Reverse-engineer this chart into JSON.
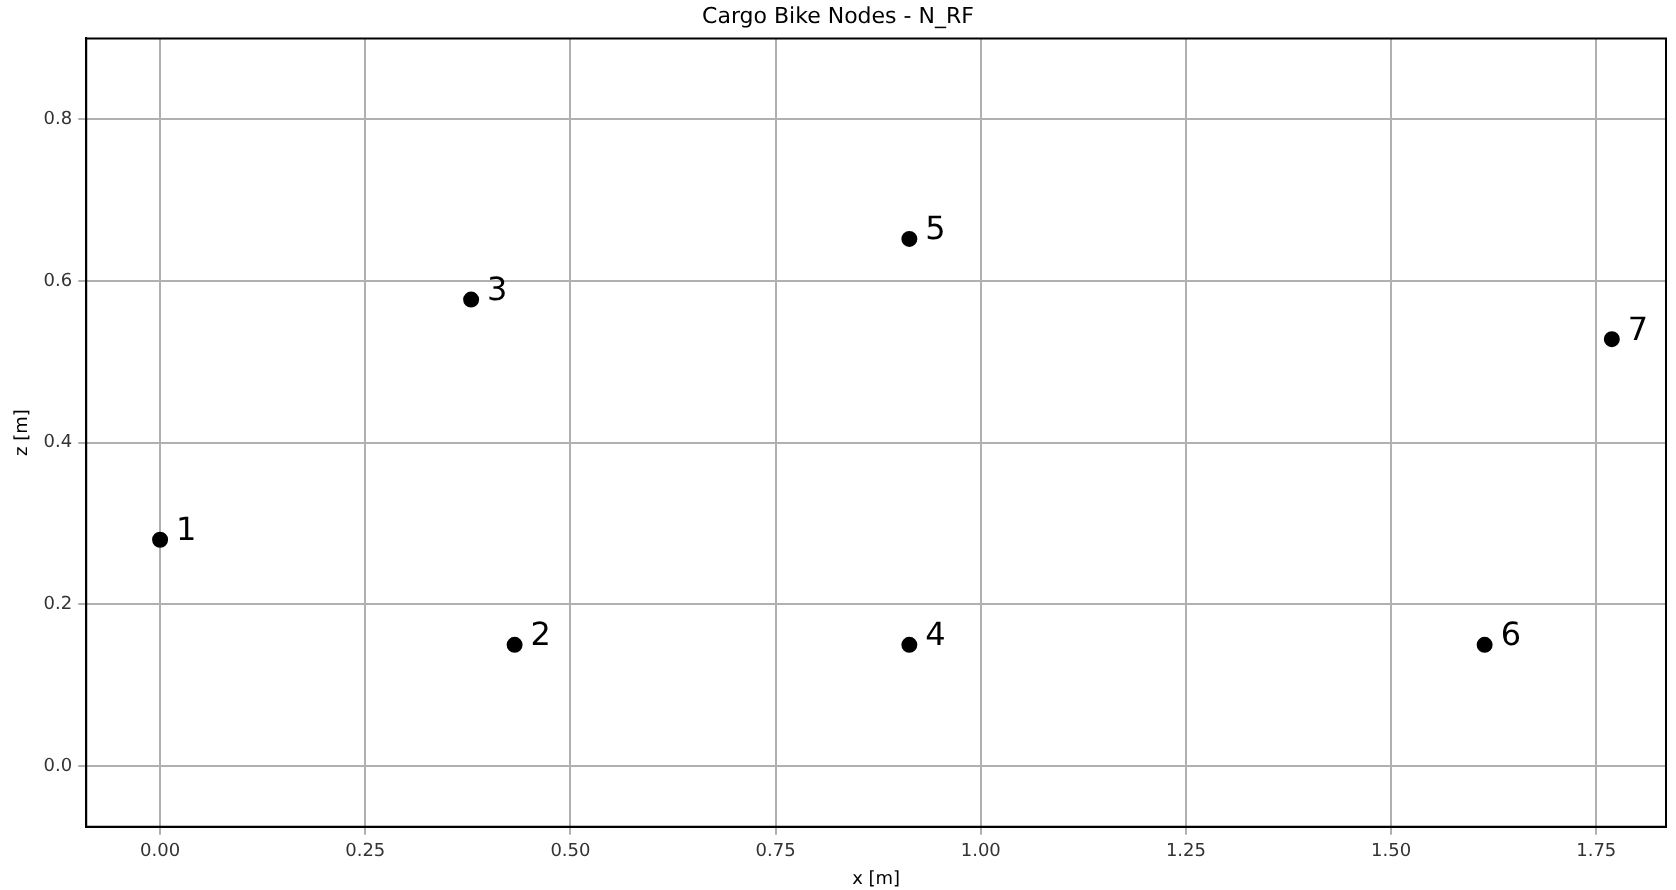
{
  "chart_data": {
    "type": "scatter",
    "title": "Cargo Bike Nodes - N_RF",
    "xlabel": "x [m]",
    "ylabel": "z [m]",
    "x": [
      0,
      0.432,
      0.379,
      0.913,
      0.913,
      1.614,
      1.769
    ],
    "series": [
      {
        "color": "#000000",
        "values": [
          0.28,
          0.15,
          0.577,
          0.15,
          0.652,
          0.15,
          0.528
        ]
      }
    ],
    "xlim": [
      -0.09,
      1.835
    ],
    "ylim": [
      -0.075,
      0.9
    ],
    "xticks": [
      {
        "value": 0,
        "label": "0.00"
      },
      {
        "value": 0.25,
        "label": "0.25"
      },
      {
        "value": 0.5,
        "label": "0.50"
      },
      {
        "value": 0.75,
        "label": "0.75"
      },
      {
        "value": 1,
        "label": "1.00"
      },
      {
        "value": 1.25,
        "label": "1.25"
      },
      {
        "value": 1.5,
        "label": "1.50"
      },
      {
        "value": 1.75,
        "label": "1.75"
      }
    ],
    "yticks": [
      {
        "value": 0,
        "label": "0.0"
      },
      {
        "value": 0.2,
        "label": "0.2"
      },
      {
        "value": 0.4,
        "label": "0.4"
      },
      {
        "value": 0.6,
        "label": "0.6"
      },
      {
        "value": 0.8,
        "label": "0.8"
      }
    ],
    "annotations": [
      {
        "text": "1",
        "x": 0,
        "y": 0.28
      },
      {
        "text": "2",
        "x": 0.432,
        "y": 0.15
      },
      {
        "text": "3",
        "x": 0.379,
        "y": 0.577
      },
      {
        "text": "4",
        "x": 0.913,
        "y": 0.15
      },
      {
        "text": "5",
        "x": 0.913,
        "y": 0.652
      },
      {
        "text": "6",
        "x": 1.614,
        "y": 0.15
      },
      {
        "text": "7",
        "x": 1.769,
        "y": 0.528
      }
    ],
    "grid": true,
    "legend": false,
    "marker": "circle"
  }
}
